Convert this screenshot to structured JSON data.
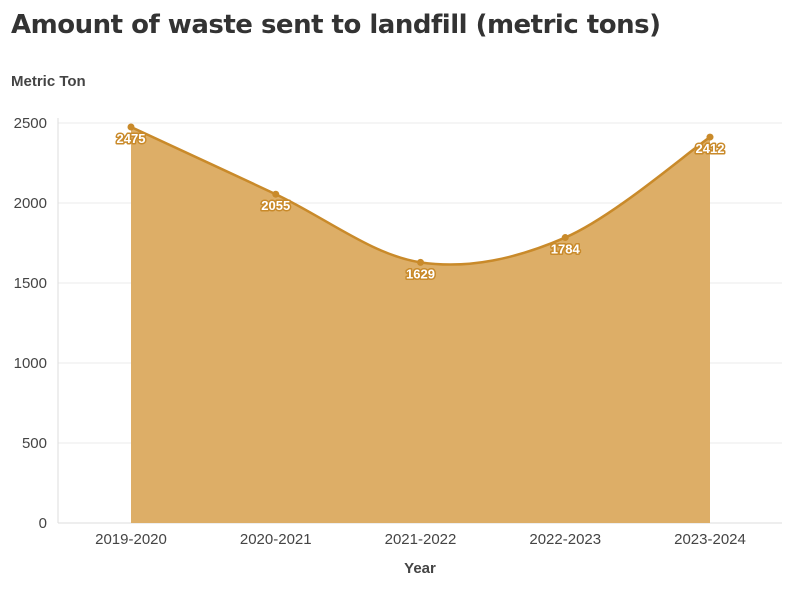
{
  "chart_data": {
    "type": "area",
    "title": "Amount of waste sent to landfill (metric tons)",
    "ylabel": "Metric Ton",
    "xlabel": "Year",
    "categories": [
      "2019-2020",
      "2020-2021",
      "2021-2022",
      "2022-2023",
      "2023-2024"
    ],
    "values": [
      2475,
      2055,
      1629,
      1784,
      2412
    ],
    "data_labels": [
      "2475",
      "2055",
      "1629",
      "1784",
      "2412"
    ],
    "y_ticks": [
      0,
      500,
      1000,
      1500,
      2000,
      2500
    ],
    "ylim": [
      0,
      2500
    ],
    "grid": true,
    "colors": {
      "fill": "#DDAE67",
      "line": "#C98A2A",
      "grid": "#EBEBEB",
      "axis": "#DDDDDD"
    }
  }
}
